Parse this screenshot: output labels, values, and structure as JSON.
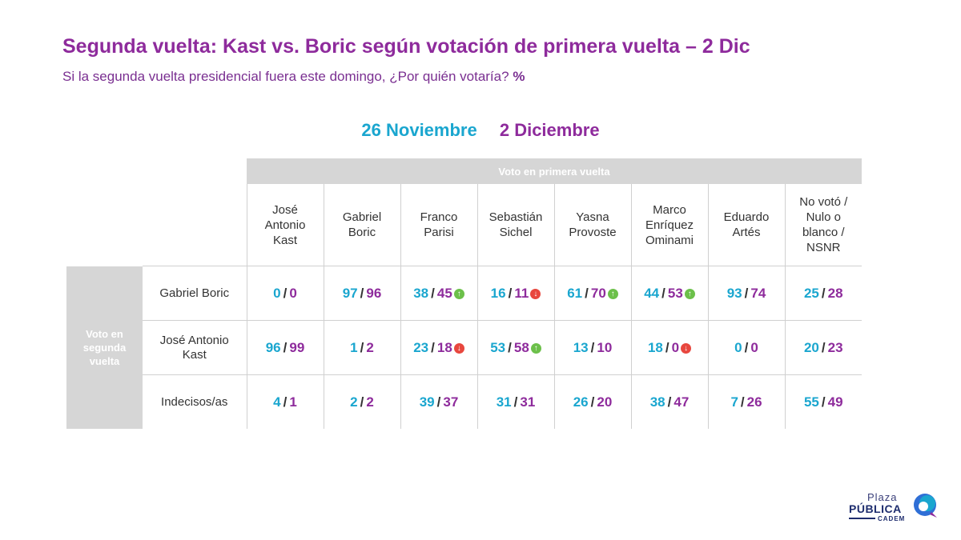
{
  "title": "Segunda vuelta: Kast vs. Boric según votación de primera vuelta – 2 Dic",
  "subtitle": "Si la segunda vuelta presidencial fuera este domingo, ¿Por quién votaría?",
  "subtitle_unit": "%",
  "legend": {
    "series1": "26 Noviembre",
    "series2": "2 Diciembre"
  },
  "colors": {
    "series1": "#1aa6cf",
    "series2": "#8e2b9c",
    "header_gray": "#d6d6d6",
    "up": "#6cc04a",
    "down": "#e8473e"
  },
  "chart_data": {
    "type": "table",
    "title": "Segunda vuelta: Kast vs. Boric según votación de primera vuelta – 2 Dic",
    "column_group": "Voto en primera vuelta",
    "row_group": [
      "Voto en",
      "segunda",
      "vuelta"
    ],
    "columns": [
      [
        "José",
        "Antonio",
        "Kast"
      ],
      [
        "Gabriel",
        "Boric"
      ],
      [
        "Franco",
        "Parisi"
      ],
      [
        "Sebastián",
        "Sichel"
      ],
      [
        "Yasna",
        "Provoste"
      ],
      [
        "Marco",
        "Enríquez",
        "Ominami"
      ],
      [
        "Eduardo",
        "Artés"
      ],
      [
        "No votó /",
        "Nulo o",
        "blanco /",
        "NSNR"
      ]
    ],
    "series": [
      {
        "name": "26 Noviembre"
      },
      {
        "name": "2 Diciembre"
      }
    ],
    "rows": [
      {
        "label": [
          "Gabriel Boric"
        ],
        "cells": [
          {
            "a": 0,
            "b": 0,
            "trend": ""
          },
          {
            "a": 97,
            "b": 96,
            "trend": ""
          },
          {
            "a": 38,
            "b": 45,
            "trend": "up"
          },
          {
            "a": 16,
            "b": 11,
            "trend": "down"
          },
          {
            "a": 61,
            "b": 70,
            "trend": "up"
          },
          {
            "a": 44,
            "b": 53,
            "trend": "up"
          },
          {
            "a": 93,
            "b": 74,
            "trend": ""
          },
          {
            "a": 25,
            "b": 28,
            "trend": ""
          }
        ]
      },
      {
        "label": [
          "José Antonio",
          "Kast"
        ],
        "cells": [
          {
            "a": 96,
            "b": 99,
            "trend": ""
          },
          {
            "a": 1,
            "b": 2,
            "trend": ""
          },
          {
            "a": 23,
            "b": 18,
            "trend": "down"
          },
          {
            "a": 53,
            "b": 58,
            "trend": "up"
          },
          {
            "a": 13,
            "b": 10,
            "trend": ""
          },
          {
            "a": 18,
            "b": 0,
            "trend": "down"
          },
          {
            "a": 0,
            "b": 0,
            "trend": ""
          },
          {
            "a": 20,
            "b": 23,
            "trend": ""
          }
        ]
      },
      {
        "label": [
          "Indecisos/as"
        ],
        "cells": [
          {
            "a": 4,
            "b": 1,
            "trend": ""
          },
          {
            "a": 2,
            "b": 2,
            "trend": ""
          },
          {
            "a": 39,
            "b": 37,
            "trend": ""
          },
          {
            "a": 31,
            "b": 31,
            "trend": ""
          },
          {
            "a": 26,
            "b": 20,
            "trend": ""
          },
          {
            "a": 38,
            "b": 47,
            "trend": ""
          },
          {
            "a": 7,
            "b": 26,
            "trend": ""
          },
          {
            "a": 55,
            "b": 49,
            "trend": ""
          }
        ]
      }
    ]
  },
  "logo": {
    "line1": "Plaza",
    "line2": "PÚBLICA",
    "line3": "CADEM"
  }
}
